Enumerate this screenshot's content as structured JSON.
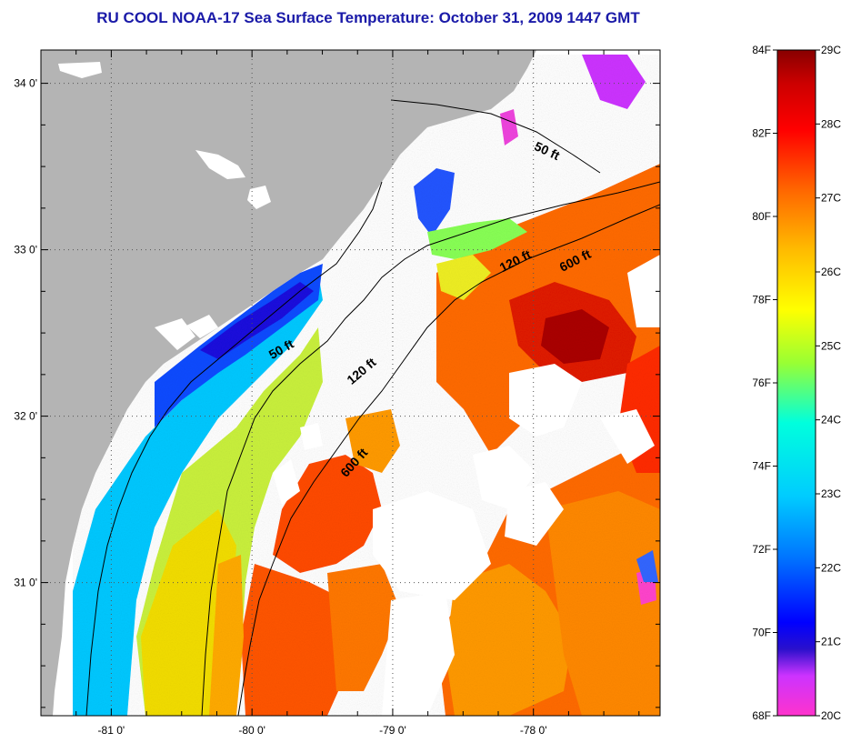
{
  "title": "RU COOL  NOAA-17  Sea Surface Temperature:  October 31, 2009 1447 GMT",
  "colors": {
    "land": "#b4b4b4",
    "nodata": "#ffffff",
    "title": "#1a1aa8",
    "colormap": [
      "#ff33cc",
      "#cc33ff",
      "#0000ff",
      "#0077ff",
      "#00ccff",
      "#00ffdd",
      "#99ff33",
      "#ffff00",
      "#ffbb00",
      "#ff6600",
      "#ff0000",
      "#cc0000",
      "#880000"
    ]
  },
  "map": {
    "lat_labels": [
      "34 0'",
      "33 0'",
      "32 0'",
      "31 0'"
    ],
    "lon_labels": [
      "-81 0'",
      "-80 0'",
      "-79 0'",
      "-78 0'"
    ],
    "grid": "dotted",
    "projection": "lat-lon",
    "lon_range": [
      -81.5,
      -77.1
    ],
    "lat_range": [
      30.2,
      34.2
    ],
    "isobath_labels": [
      "50 ft",
      "50 ft",
      "120 ft",
      "120 ft",
      "600 ft",
      "600 ft"
    ]
  },
  "colorbar": {
    "f_labels": [
      "84F",
      "82F",
      "80F",
      "78F",
      "76F",
      "74F",
      "72F",
      "70F",
      "68F"
    ],
    "c_labels": [
      "29C",
      "28C",
      "27C",
      "26C",
      "25C",
      "24C",
      "23C",
      "22C",
      "21C",
      "20C"
    ],
    "f_range": [
      68,
      84
    ],
    "c_range": [
      20,
      29
    ]
  }
}
